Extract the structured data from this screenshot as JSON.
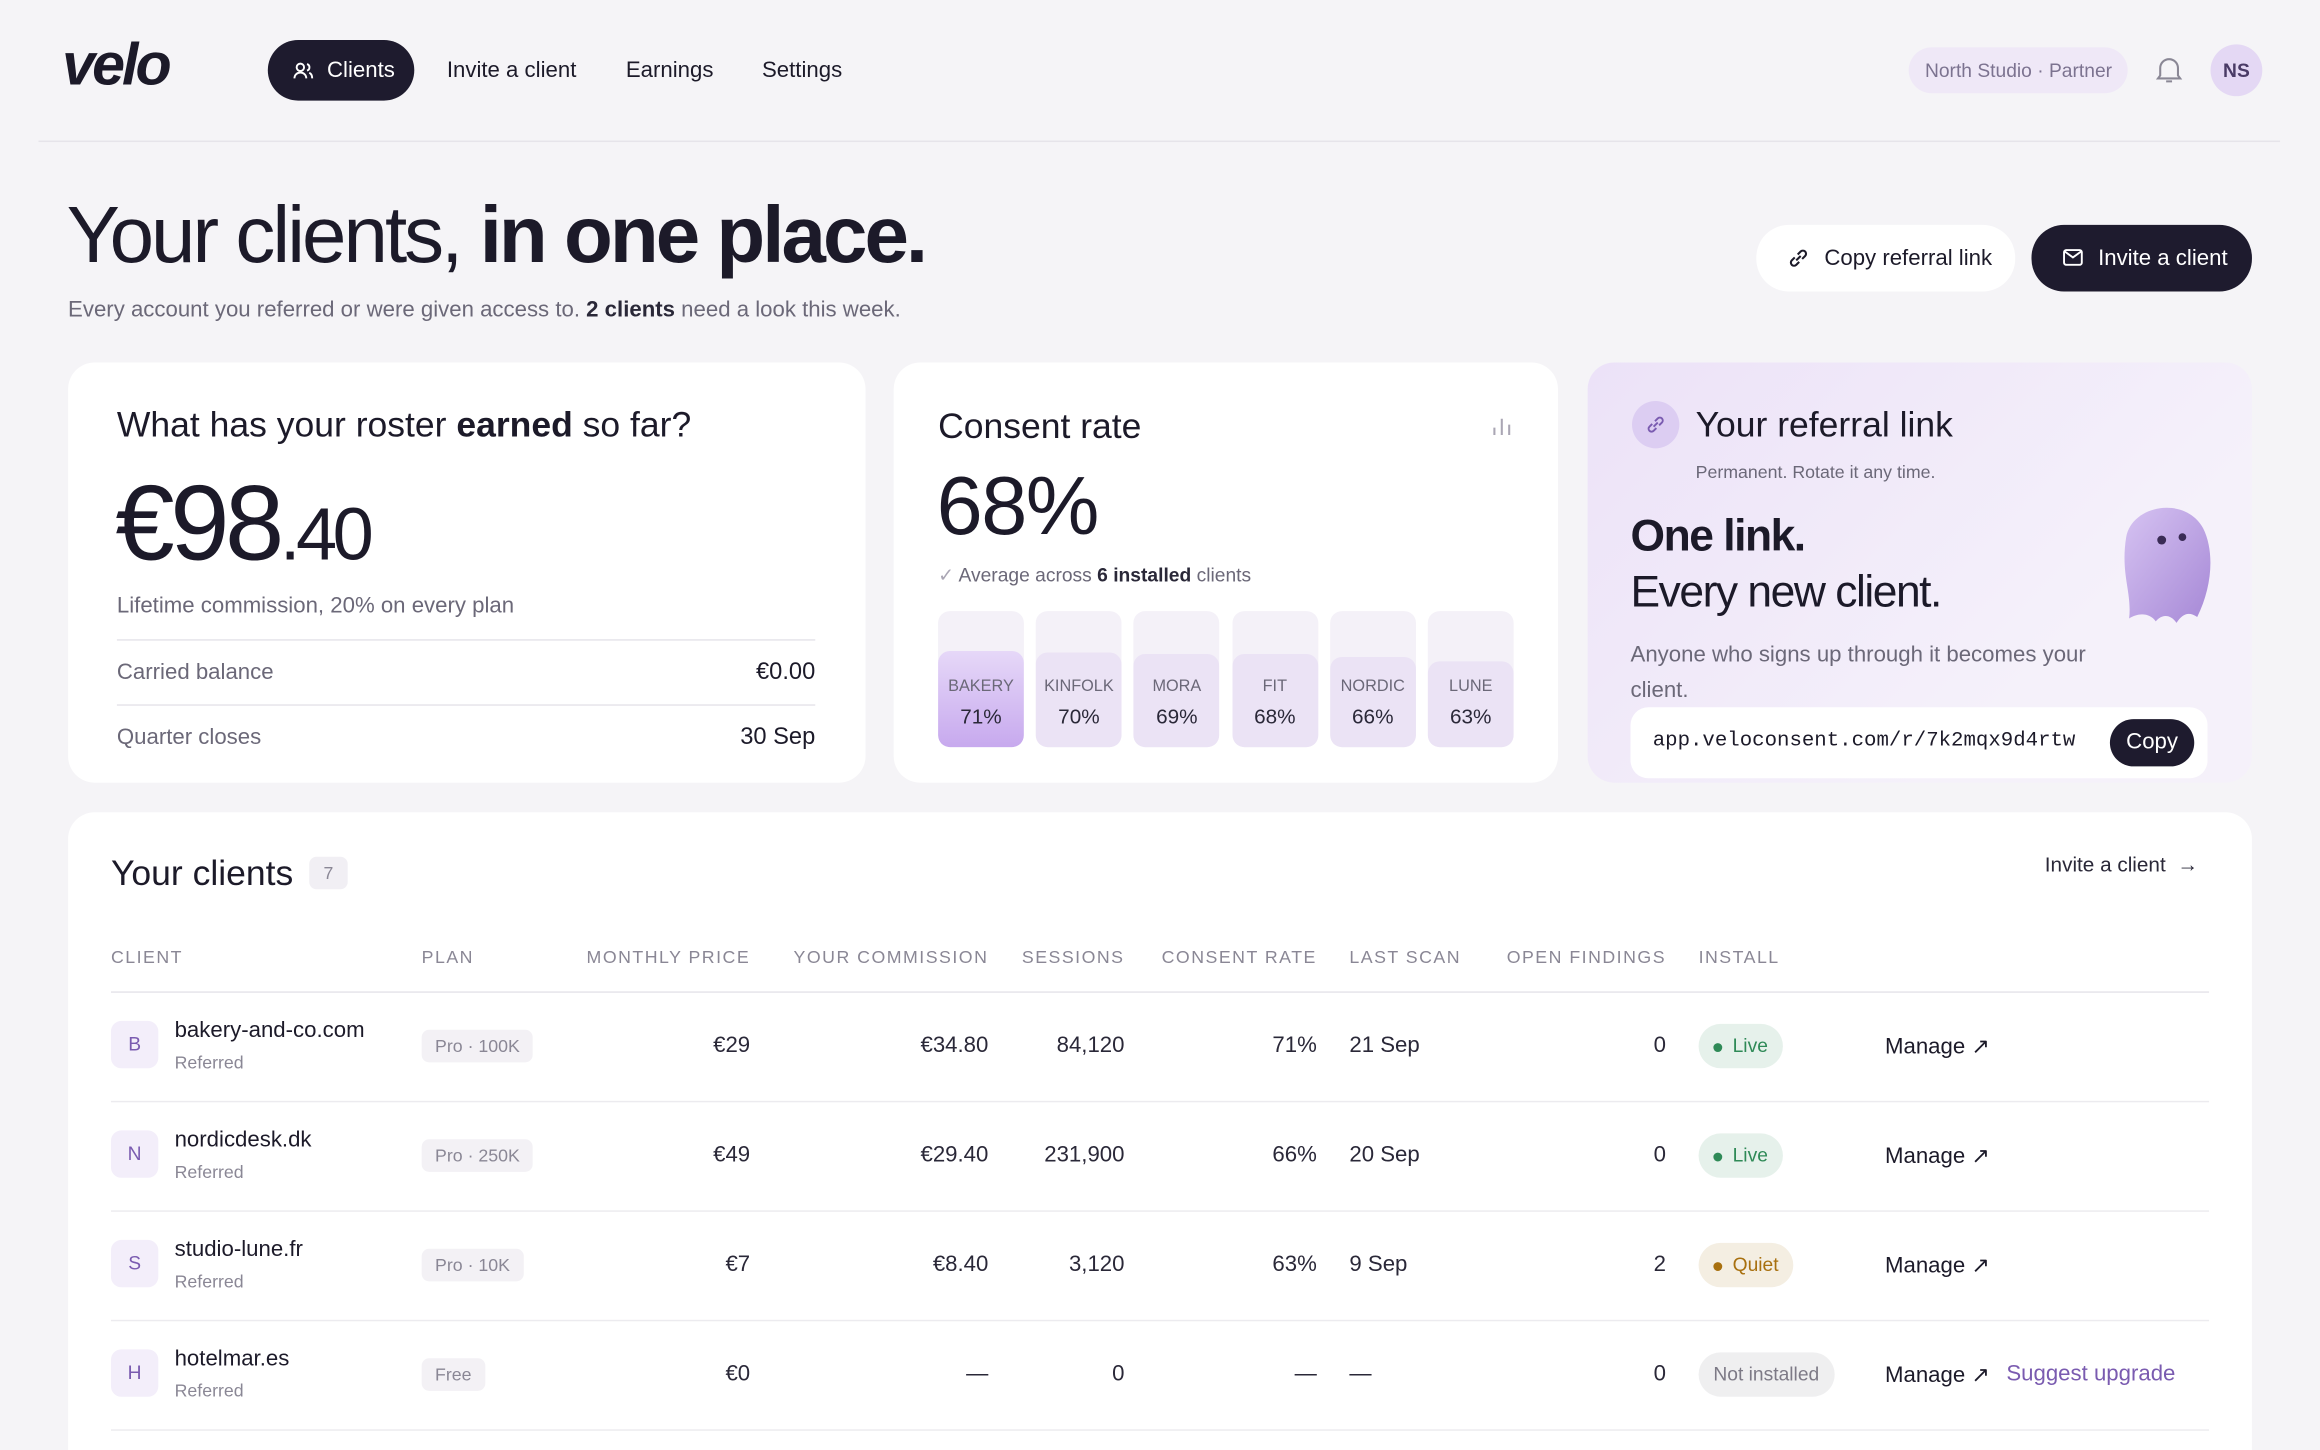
{
  "nav": {
    "logo": "velo",
    "items": [
      "Clients",
      "Invite a client",
      "Earnings",
      "Settings"
    ],
    "partner": "North Studio · Partner",
    "avatar": "NS"
  },
  "hero": {
    "title_light": "Your clients,",
    "title_bold": "in one place.",
    "subtitle_start": "Every account you referred or were given access to.",
    "subtitle_bold": "2 clients",
    "subtitle_end": "need a look this week.",
    "copy_button": "Copy referral link",
    "invite_button": "Invite a client"
  },
  "earnings": {
    "question_start": "What has your roster",
    "question_bold": "earned",
    "question_end": "so far?",
    "amount_whole": "€98",
    "amount_cents": ".40",
    "note": "Lifetime commission, 20% on every plan",
    "rows": [
      {
        "label": "Carried balance",
        "value": "€0.00"
      },
      {
        "label": "Quarter closes",
        "value": "30 Sep"
      }
    ]
  },
  "consent": {
    "title": "Consent rate",
    "value": "68%",
    "note_start": "Average across",
    "note_bold": "6 installed",
    "note_end": "clients",
    "bars": [
      {
        "label": "BAKERY",
        "value": 71,
        "value_label": "71%"
      },
      {
        "label": "KINFOLK",
        "value": 70,
        "value_label": "70%"
      },
      {
        "label": "MORA",
        "value": 69,
        "value_label": "69%"
      },
      {
        "label": "FIT",
        "value": 68,
        "value_label": "68%"
      },
      {
        "label": "NORDIC",
        "value": 66,
        "value_label": "66%"
      },
      {
        "label": "LUNE",
        "value": 63,
        "value_label": "63%"
      }
    ]
  },
  "referral": {
    "title": "Your referral link",
    "subtitle": "Permanent. Rotate it any time.",
    "headline_1": "One link.",
    "headline_2": "Every new client.",
    "description": "Anyone who signs up through it becomes your client.",
    "link": "app.veloconsent.com/r/7k2mqx9d4rtw",
    "copy": "Copy"
  },
  "clients": {
    "title": "Your clients",
    "count": "7",
    "action": "Invite a client",
    "columns": [
      "CLIENT",
      "PLAN",
      "MONTHLY PRICE",
      "YOUR COMMISSION",
      "SESSIONS",
      "CONSENT RATE",
      "LAST SCAN",
      "OPEN FINDINGS",
      "INSTALL"
    ],
    "rows": [
      {
        "initial": "B",
        "name": "bakery-and-co.com",
        "source": "Referred",
        "plan": "Pro · 100K",
        "price": "€29",
        "commission": "€34.80",
        "sessions": "84,120",
        "consent": "71%",
        "last_scan": "21 Sep",
        "findings": "0",
        "install": "Live",
        "install_color": "#2f8a57",
        "manage": "Manage ↗"
      },
      {
        "initial": "N",
        "name": "nordicdesk.dk",
        "source": "Referred",
        "plan": "Pro · 250K",
        "price": "€49",
        "commission": "€29.40",
        "sessions": "231,900",
        "consent": "66%",
        "last_scan": "20 Sep",
        "findings": "0",
        "install": "Live",
        "install_color": "#2f8a57",
        "manage": "Manage ↗"
      },
      {
        "initial": "S",
        "name": "studio-lune.fr",
        "source": "Referred",
        "plan": "Pro · 10K",
        "price": "€7",
        "commission": "€8.40",
        "sessions": "3,120",
        "consent": "63%",
        "last_scan": "9 Sep",
        "findings": "2",
        "install": "Quiet",
        "install_color": "#a8700f",
        "manage": "Manage ↗"
      },
      {
        "initial": "H",
        "name": "hotelmar.es",
        "source": "Referred",
        "plan": "Free",
        "price": "€0",
        "commission": "—",
        "sessions": "0",
        "consent": "—",
        "last_scan": "—",
        "findings": "0",
        "install": "Not installed",
        "install_color": "#7d7a86",
        "manage": "Manage ↗",
        "extra": "Suggest upgrade"
      }
    ]
  }
}
